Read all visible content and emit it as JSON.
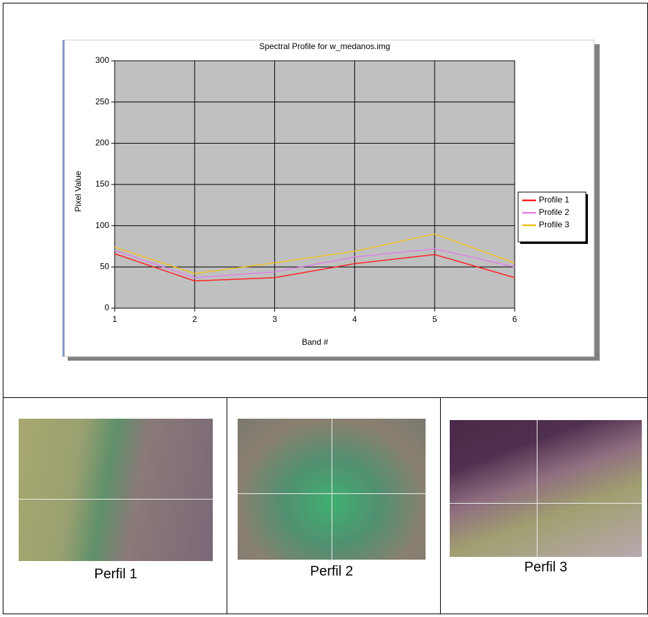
{
  "chart_data": {
    "type": "line",
    "title": "Spectral Profile for w_medanos.img",
    "x_label": "Band #",
    "y_label": "Pixel Value",
    "x": [
      1,
      2,
      3,
      4,
      5,
      6
    ],
    "series": [
      {
        "name": "Profile 1",
        "color": "#ff2020",
        "values": [
          66,
          33,
          37,
          54,
          65,
          37
        ]
      },
      {
        "name": "Profile 2",
        "color": "#e080e8",
        "values": [
          70,
          37,
          44,
          62,
          72,
          50
        ]
      },
      {
        "name": "Profile 3",
        "color": "#f0c020",
        "values": [
          74,
          42,
          55,
          69,
          90,
          55
        ]
      }
    ],
    "xlim": [
      1,
      6
    ],
    "xticks": [
      1,
      2,
      3,
      4,
      5,
      6
    ],
    "ylim": [
      0,
      300
    ],
    "yticks": [
      0,
      50,
      100,
      150,
      200,
      250,
      300
    ],
    "grid": true,
    "legend": "right"
  },
  "captions": [
    "Perfil 1",
    "Perfil 2",
    "Perfil 3"
  ]
}
